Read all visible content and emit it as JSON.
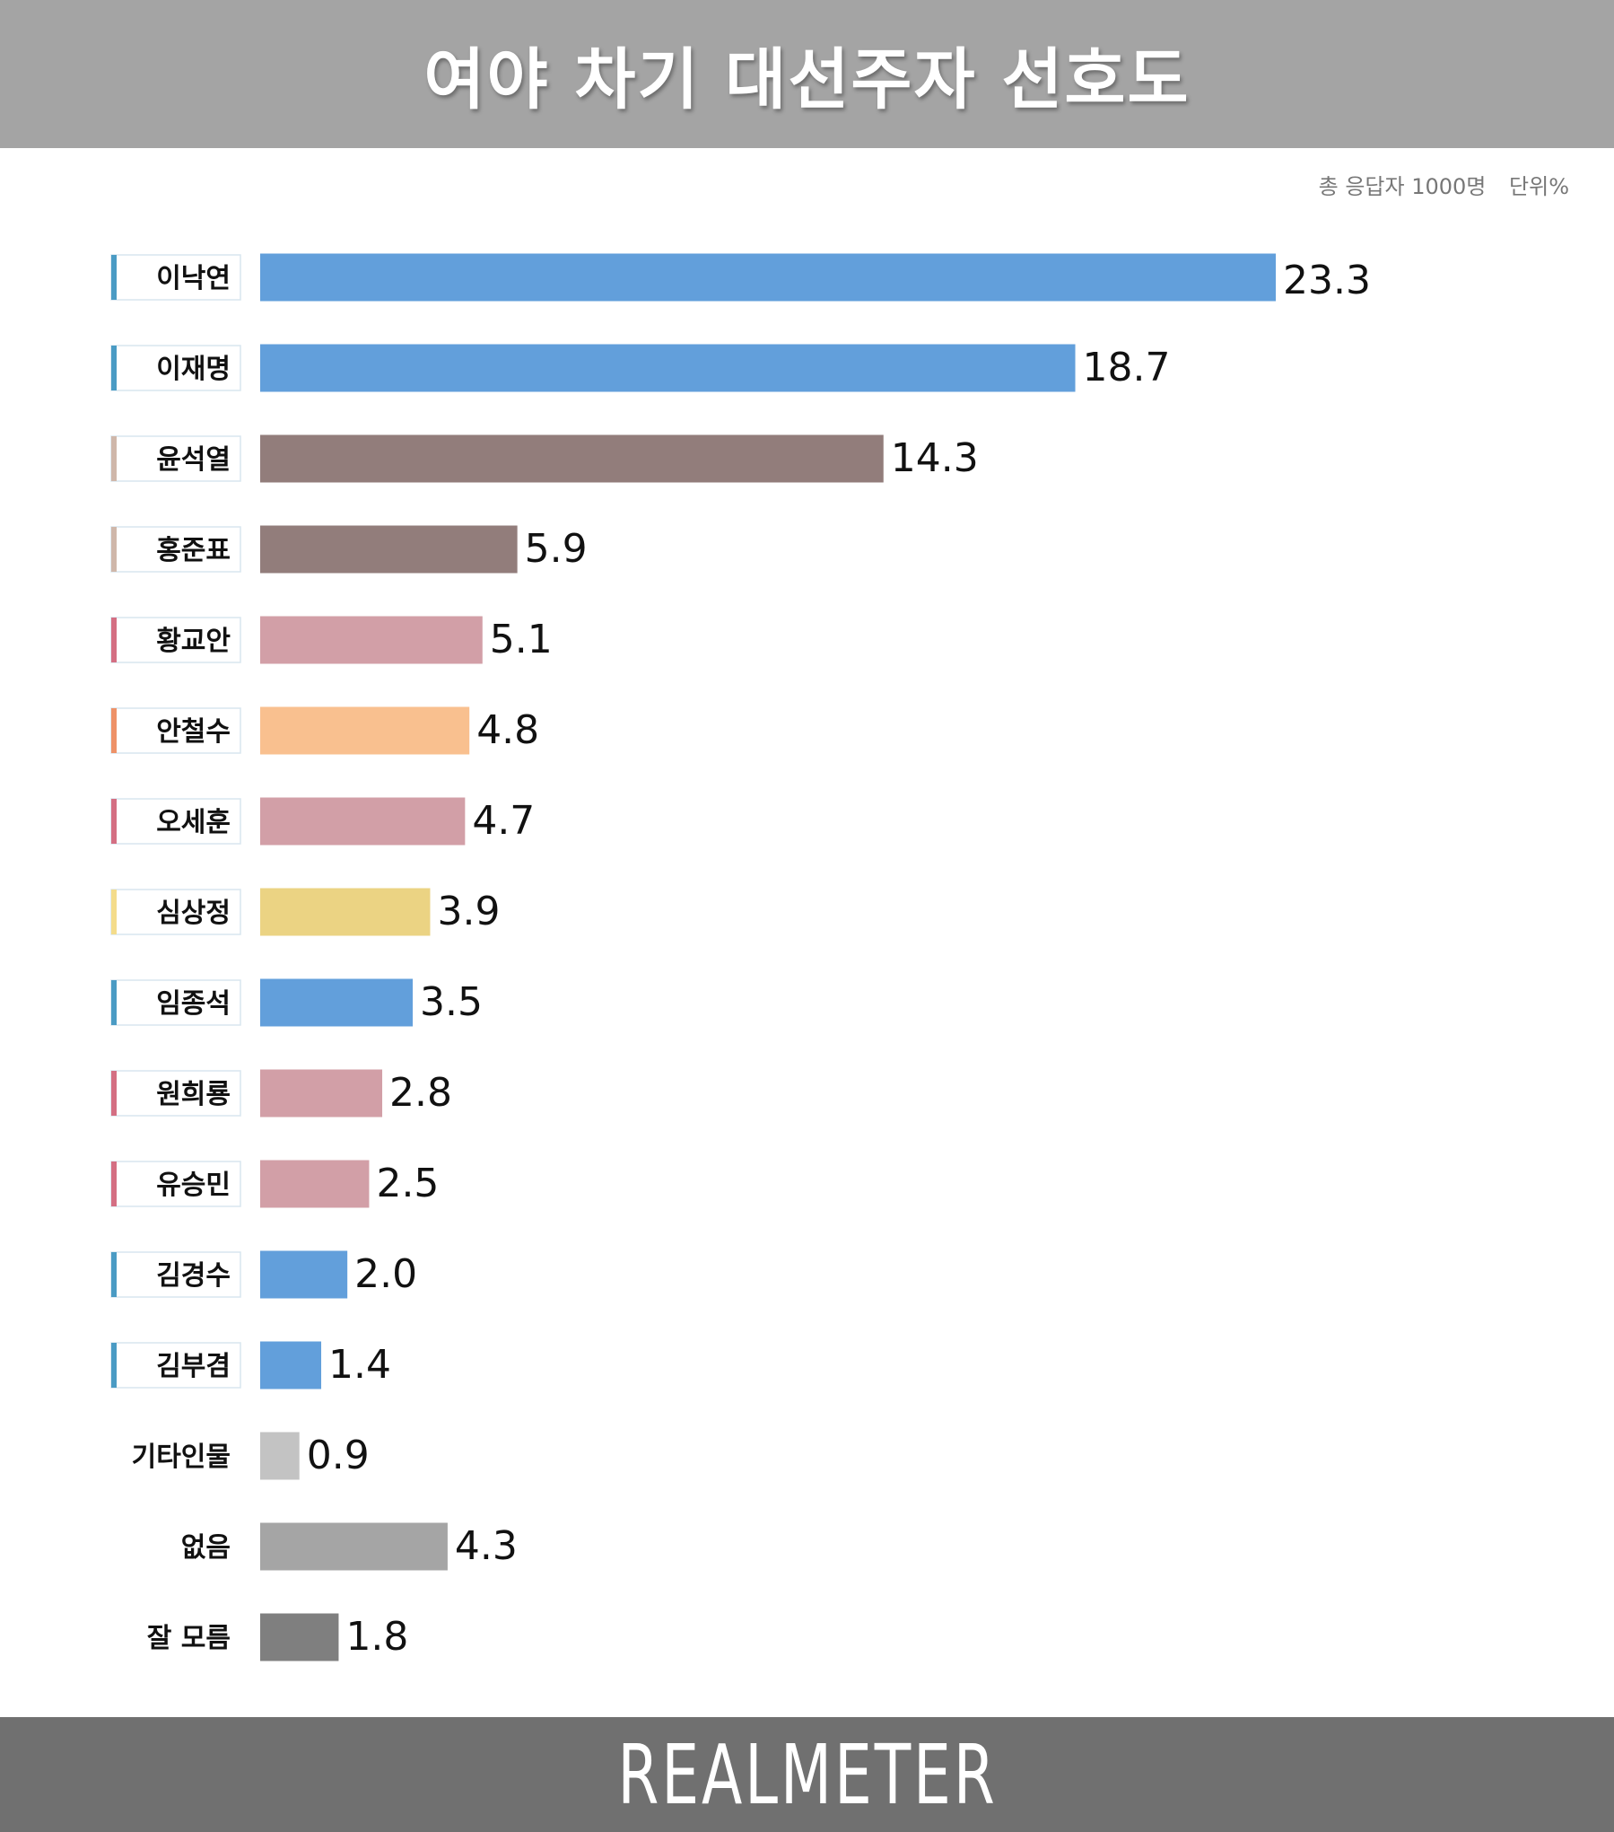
{
  "header": {
    "title": "여야 차기 대선주자 선호도"
  },
  "meta": {
    "respondents": "총 응답자 1000명",
    "unit": "단위%"
  },
  "footer": {
    "brand": "REALMETER"
  },
  "colors": {
    "blue": "#629fdb",
    "brown": "#927d7b",
    "pink": "#d29fa7",
    "orange": "#f9c08f",
    "yellow": "#ebd383",
    "gray_light": "#c3c3c3",
    "gray_mid": "#a5a5a5",
    "gray_dark": "#7f7f7f",
    "marker_blue": "#4a9bc4",
    "marker_brown": "#cfb7aa",
    "marker_pink": "#d46f83",
    "marker_orange": "#ee9268",
    "marker_yellow": "#f4dc8b",
    "highlight_value": "#629fdb"
  },
  "chart_data": {
    "type": "bar",
    "orientation": "horizontal",
    "categories": [
      "이낙연",
      "이재명",
      "윤석열",
      "홍준표",
      "황교안",
      "안철수",
      "오세훈",
      "심상정",
      "임종석",
      "원희룡",
      "유승민",
      "김경수",
      "김부겸",
      "기타인물",
      "없음",
      "잘 모름"
    ],
    "values": [
      23.3,
      18.7,
      14.3,
      5.9,
      5.1,
      4.8,
      4.7,
      3.9,
      3.5,
      2.8,
      2.5,
      2.0,
      1.4,
      0.9,
      4.3,
      1.8
    ],
    "value_labels": [
      "23.3",
      "18.7",
      "14.3",
      "5.9",
      "5.1",
      "4.8",
      "4.7",
      "3.9",
      "3.5",
      "2.8",
      "2.5",
      "2.0",
      "1.4",
      "0.9",
      "4.3",
      "1.8"
    ],
    "bar_colors": [
      "blue",
      "blue",
      "brown",
      "brown",
      "pink",
      "orange",
      "pink",
      "yellow",
      "blue",
      "pink",
      "pink",
      "blue",
      "blue",
      "gray_light",
      "gray_mid",
      "gray_dark"
    ],
    "label_markers": [
      "marker_blue",
      "marker_blue",
      "marker_brown",
      "marker_brown",
      "marker_pink",
      "marker_orange",
      "marker_pink",
      "marker_yellow",
      "marker_blue",
      "marker_pink",
      "marker_pink",
      "marker_blue",
      "marker_blue",
      null,
      null,
      null
    ],
    "highlight_index": 0,
    "xlim": [
      0,
      23.3
    ],
    "grid": false,
    "legend": "none",
    "title": "여야 차기 대선주자 선호도",
    "xlabel": "",
    "ylabel": ""
  }
}
